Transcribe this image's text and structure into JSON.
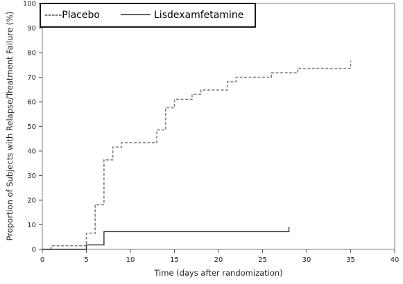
{
  "chart_data": {
    "type": "line",
    "style": "step",
    "xlabel": "Time (days after randomization)",
    "ylabel": "Proportion of Subjects with Relapse/Treatment Failure (%)",
    "xlim": [
      0,
      40
    ],
    "ylim": [
      0,
      100
    ],
    "xticks": [
      0,
      5,
      10,
      15,
      20,
      25,
      30,
      35,
      40
    ],
    "yticks": [
      0,
      10,
      20,
      30,
      40,
      50,
      60,
      70,
      80,
      90,
      100
    ],
    "grid": false,
    "legend_position": "top-left",
    "series": [
      {
        "name": "-----Placebo",
        "dash": "dashed",
        "color": "#808080",
        "x": [
          0,
          1,
          5,
          6,
          7,
          8,
          9,
          13,
          14,
          15,
          17,
          18,
          21,
          22,
          26,
          29,
          35
        ],
        "y": [
          0,
          1.5,
          6.6,
          18.2,
          36.4,
          41.6,
          43.4,
          48.6,
          57.6,
          61.0,
          63.0,
          64.8,
          68.2,
          70.0,
          71.8,
          73.6,
          76.8
        ]
      },
      {
        "name": "Lisdexamfetamine",
        "dash": "solid",
        "color": "#303030",
        "x": [
          0,
          5,
          7,
          28
        ],
        "y": [
          0,
          1.8,
          7.2,
          9.0
        ]
      }
    ],
    "ends_at": {
      "-----Placebo": 35,
      "Lisdexamfetamine": 28
    }
  }
}
